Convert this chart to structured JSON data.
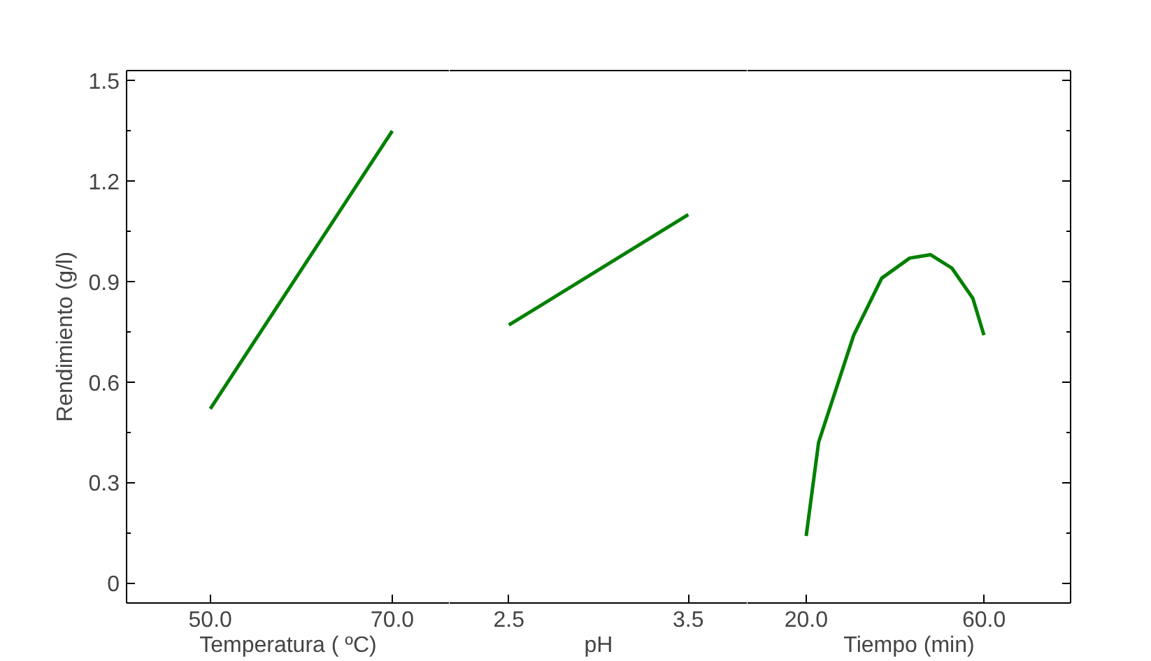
{
  "chart_data": [
    {
      "type": "line",
      "ylabel": "Rendimiento (g/l)",
      "xlabel": "Temperatura ( ºC)",
      "xlim": [
        40.8,
        76.3
      ],
      "ylim": [
        -0.06,
        1.53
      ],
      "xticks": [
        {
          "value": 50,
          "label": "50.0"
        },
        {
          "value": 70,
          "label": "70.0"
        }
      ],
      "yticks": [
        0,
        0.3,
        0.6,
        0.9,
        1.2,
        1.5
      ],
      "grid": false,
      "line_style": "solid",
      "series": [
        {
          "color": "#008000",
          "x": [
            50,
            70
          ],
          "values": [
            0.52,
            1.35
          ]
        }
      ]
    },
    {
      "type": "line",
      "xlabel": "pH",
      "xlim": [
        2.17,
        3.83
      ],
      "ylim": [
        -0.06,
        1.53
      ],
      "tick_labels": "x",
      "xticks": [
        2.5,
        3.5
      ],
      "grid": false,
      "line_style": "solid",
      "series": [
        {
          "color": "#008000",
          "x": [
            2.5,
            3.5
          ],
          "values": [
            0.77,
            1.1
          ]
        }
      ]
    },
    {
      "type": "line",
      "xlabel": "Tiempo (min)",
      "xlim": [
        6.8,
        79.5
      ],
      "ylim": [
        -0.06,
        1.53
      ],
      "tick_labels": "x",
      "xticks": [
        {
          "value": 20,
          "label": "20.0"
        },
        {
          "value": 60,
          "label": "60.0"
        }
      ],
      "grid": false,
      "line_style": "solid",
      "series": [
        {
          "color": "#008000",
          "x": [
            20,
            22.8,
            30.7,
            37,
            43.3,
            48,
            52.8,
            57.5,
            60
          ],
          "values": [
            0.14,
            0.42,
            0.74,
            0.91,
            0.97,
            0.98,
            0.94,
            0.85,
            0.74
          ]
        }
      ]
    }
  ]
}
